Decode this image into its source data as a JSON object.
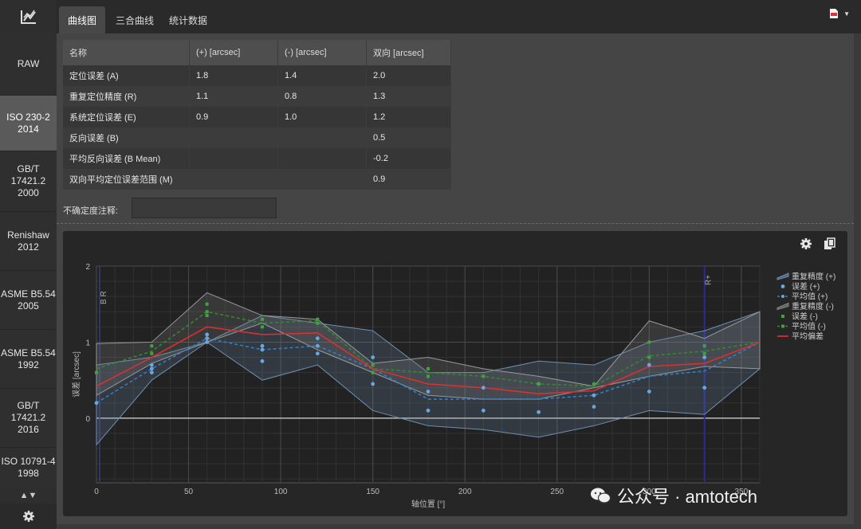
{
  "sidebar": {
    "items": [
      "RAW",
      "ISO 230-2\n2014",
      "GB/T\n17421.2\n2000",
      "Renishaw\n2012",
      "ASME B5.54\n2005",
      "ASME B5.54\n1992",
      "GB/T\n17421.2\n2016",
      "ISO 10791-4\n1998"
    ],
    "active_index": 1,
    "scroll_label": "▲▼"
  },
  "tabs": [
    "曲线图",
    "三合曲线",
    "统计数据"
  ],
  "active_tab": 0,
  "table": {
    "headers": [
      "名称",
      "(+) [arcsec]",
      "(-) [arcsec]",
      "双向 [arcsec]"
    ],
    "rows": [
      [
        "定位误差 (A)",
        "1.8",
        "1.4",
        "2.0"
      ],
      [
        "重复定位精度 (R)",
        "1.1",
        "0.8",
        "1.3"
      ],
      [
        "系统定位误差 (E)",
        "0.9",
        "1.0",
        "1.2"
      ],
      [
        "反向误差 (B)",
        "",
        "",
        "0.5"
      ],
      [
        "平均反向误差 (B Mean)",
        "",
        "",
        "-0.2"
      ],
      [
        "双向平均定位误差范围 (M)",
        "",
        "",
        "0.9"
      ]
    ]
  },
  "uncertainty_label": "不确定度注释:",
  "watermark": "公众号 · amtotech",
  "colors": {
    "accent_green": "#2e8b2e",
    "accent_red": "#d93030",
    "accent_blue": "#2f7fc8",
    "band_plus": "#6e8fb0",
    "band_minus": "#888888"
  },
  "chart_data": {
    "type": "line",
    "xlabel": "轴位置 [°]",
    "ylabel": "误差 [arcsec]",
    "xlim": [
      0,
      360
    ],
    "ylim": [
      -0.85,
      2
    ],
    "xticks": [
      0,
      50,
      100,
      150,
      200,
      250,
      300,
      350
    ],
    "yticks": [
      0,
      1,
      2
    ],
    "marker_labels": [
      "B R",
      "R+"
    ],
    "x": [
      0,
      30,
      60,
      90,
      120,
      150,
      180,
      210,
      240,
      270,
      300,
      330,
      360
    ],
    "series": [
      {
        "name": "重复精度 (+)",
        "upper": [
          0.7,
          0.8,
          1.0,
          1.35,
          1.25,
          1.15,
          0.6,
          0.6,
          0.75,
          0.7,
          1.0,
          1.15,
          1.4
        ],
        "lower": [
          -0.35,
          0.5,
          1.0,
          0.5,
          0.7,
          0.1,
          -0.1,
          -0.15,
          -0.25,
          -0.1,
          0.1,
          0.05,
          0.65
        ]
      },
      {
        "name": "误差 (+)",
        "points": [
          [
            0,
            0.2
          ],
          [
            30,
            0.6
          ],
          [
            30,
            0.65
          ],
          [
            30,
            0.7
          ],
          [
            60,
            1.0
          ],
          [
            60,
            1.05
          ],
          [
            60,
            1.1
          ],
          [
            90,
            0.75
          ],
          [
            90,
            0.9
          ],
          [
            90,
            0.95
          ],
          [
            120,
            0.85
          ],
          [
            120,
            0.95
          ],
          [
            120,
            1.05
          ],
          [
            150,
            0.45
          ],
          [
            150,
            0.8
          ],
          [
            180,
            0.1
          ],
          [
            180,
            0.35
          ],
          [
            210,
            0.1
          ],
          [
            210,
            0.4
          ],
          [
            240,
            0.08
          ],
          [
            240,
            0.45
          ],
          [
            270,
            0.15
          ],
          [
            270,
            0.3
          ],
          [
            300,
            0.35
          ],
          [
            300,
            0.7
          ],
          [
            330,
            0.4
          ],
          [
            330,
            0.8
          ]
        ]
      },
      {
        "name": "平均值 (+)",
        "values": [
          0.2,
          0.65,
          1.05,
          0.9,
          0.95,
          0.65,
          0.25,
          0.25,
          0.25,
          0.3,
          0.55,
          0.62,
          1.0
        ]
      },
      {
        "name": "重复精度 (-)",
        "upper": [
          0.98,
          1.0,
          1.65,
          1.35,
          1.3,
          0.72,
          0.8,
          0.65,
          0.55,
          0.42,
          1.28,
          1.05,
          1.4
        ],
        "lower": [
          0.3,
          0.72,
          1.0,
          1.25,
          0.9,
          0.6,
          0.3,
          0.25,
          0.25,
          0.4,
          0.55,
          0.68,
          0.65
        ]
      },
      {
        "name": "误差 (-)",
        "points": [
          [
            0,
            0.6
          ],
          [
            30,
            0.85
          ],
          [
            30,
            0.95
          ],
          [
            60,
            1.35
          ],
          [
            60,
            1.4
          ],
          [
            60,
            1.5
          ],
          [
            90,
            1.2
          ],
          [
            90,
            1.3
          ],
          [
            120,
            1.25
          ],
          [
            120,
            1.3
          ],
          [
            150,
            0.6
          ],
          [
            150,
            0.7
          ],
          [
            180,
            0.55
          ],
          [
            180,
            0.65
          ],
          [
            210,
            0.55
          ],
          [
            240,
            0.45
          ],
          [
            270,
            0.45
          ],
          [
            300,
            0.8
          ],
          [
            300,
            1.0
          ],
          [
            330,
            0.85
          ],
          [
            330,
            0.95
          ]
        ]
      },
      {
        "name": "平均值 (-)",
        "values": [
          0.65,
          0.88,
          1.4,
          1.25,
          1.28,
          0.65,
          0.6,
          0.55,
          0.45,
          0.42,
          0.82,
          0.88,
          1.0
        ]
      },
      {
        "name": "平均偏差",
        "values": [
          0.42,
          0.8,
          1.2,
          1.1,
          1.12,
          0.65,
          0.45,
          0.4,
          0.32,
          0.36,
          0.68,
          0.72,
          1.0
        ]
      }
    ],
    "legend": "top-right",
    "grid": true
  }
}
